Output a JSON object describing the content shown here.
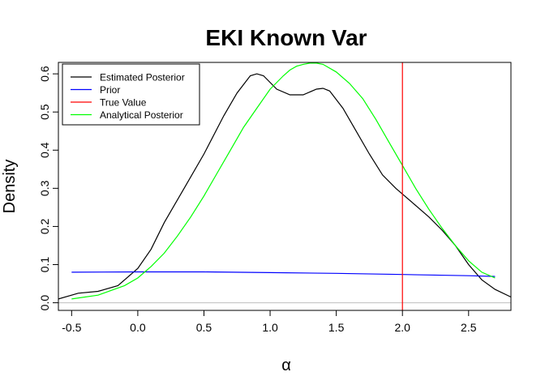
{
  "chart_data": {
    "type": "line",
    "title": "EKI Known Var",
    "xlabel": "α",
    "ylabel": "Density",
    "xlim": [
      -0.6,
      2.82
    ],
    "ylim": [
      -0.02,
      0.63
    ],
    "xticks": [
      -0.5,
      0.0,
      0.5,
      1.0,
      1.5,
      2.0,
      2.5
    ],
    "xtick_labels": [
      "-0.5",
      "0.0",
      "0.5",
      "1.0",
      "1.5",
      "2.0",
      "2.5"
    ],
    "yticks": [
      0.0,
      0.1,
      0.2,
      0.3,
      0.4,
      0.5,
      0.6
    ],
    "ytick_labels": [
      "0.0",
      "0.1",
      "0.2",
      "0.3",
      "0.4",
      "0.5",
      "0.6"
    ],
    "legend_position": "top-left",
    "baseline": {
      "y": 0,
      "color": "#bebebe"
    },
    "reference_line": {
      "name": "True Value",
      "x": 2.0,
      "color": "#ff0000"
    },
    "series": [
      {
        "name": "Estimated Posterior",
        "color": "#000000",
        "x": [
          -0.6,
          -0.45,
          -0.3,
          -0.15,
          0.0,
          0.1,
          0.2,
          0.35,
          0.5,
          0.65,
          0.75,
          0.85,
          0.9,
          0.95,
          1.05,
          1.15,
          1.25,
          1.35,
          1.4,
          1.45,
          1.55,
          1.65,
          1.75,
          1.85,
          1.95,
          2.0,
          2.1,
          2.2,
          2.3,
          2.4,
          2.5,
          2.6,
          2.7,
          2.82
        ],
        "y": [
          0.01,
          0.025,
          0.03,
          0.045,
          0.09,
          0.14,
          0.21,
          0.3,
          0.39,
          0.49,
          0.55,
          0.595,
          0.6,
          0.595,
          0.56,
          0.545,
          0.545,
          0.56,
          0.562,
          0.555,
          0.51,
          0.45,
          0.39,
          0.335,
          0.3,
          0.285,
          0.255,
          0.225,
          0.19,
          0.15,
          0.1,
          0.06,
          0.035,
          0.015
        ]
      },
      {
        "name": "Prior",
        "color": "#0000ff",
        "x": [
          -0.5,
          0.0,
          0.5,
          1.0,
          1.5,
          2.0,
          2.5,
          2.7
        ],
        "y": [
          0.08,
          0.081,
          0.081,
          0.079,
          0.077,
          0.074,
          0.071,
          0.069
        ]
      },
      {
        "name": "True Value",
        "color": "#ff0000",
        "x": [],
        "y": []
      },
      {
        "name": "Analytical Posterior",
        "color": "#00ff00",
        "x": [
          -0.5,
          -0.3,
          -0.1,
          0.0,
          0.1,
          0.2,
          0.3,
          0.4,
          0.5,
          0.6,
          0.7,
          0.8,
          0.9,
          1.0,
          1.1,
          1.15,
          1.2,
          1.25,
          1.3,
          1.35,
          1.4,
          1.5,
          1.6,
          1.7,
          1.8,
          1.9,
          2.0,
          2.1,
          2.2,
          2.3,
          2.4,
          2.5,
          2.6,
          2.7
        ],
        "y": [
          0.01,
          0.02,
          0.045,
          0.065,
          0.095,
          0.13,
          0.175,
          0.225,
          0.28,
          0.34,
          0.4,
          0.46,
          0.51,
          0.56,
          0.595,
          0.61,
          0.62,
          0.625,
          0.628,
          0.628,
          0.625,
          0.605,
          0.575,
          0.535,
          0.48,
          0.42,
          0.36,
          0.3,
          0.245,
          0.195,
          0.15,
          0.11,
          0.08,
          0.065
        ]
      }
    ]
  }
}
